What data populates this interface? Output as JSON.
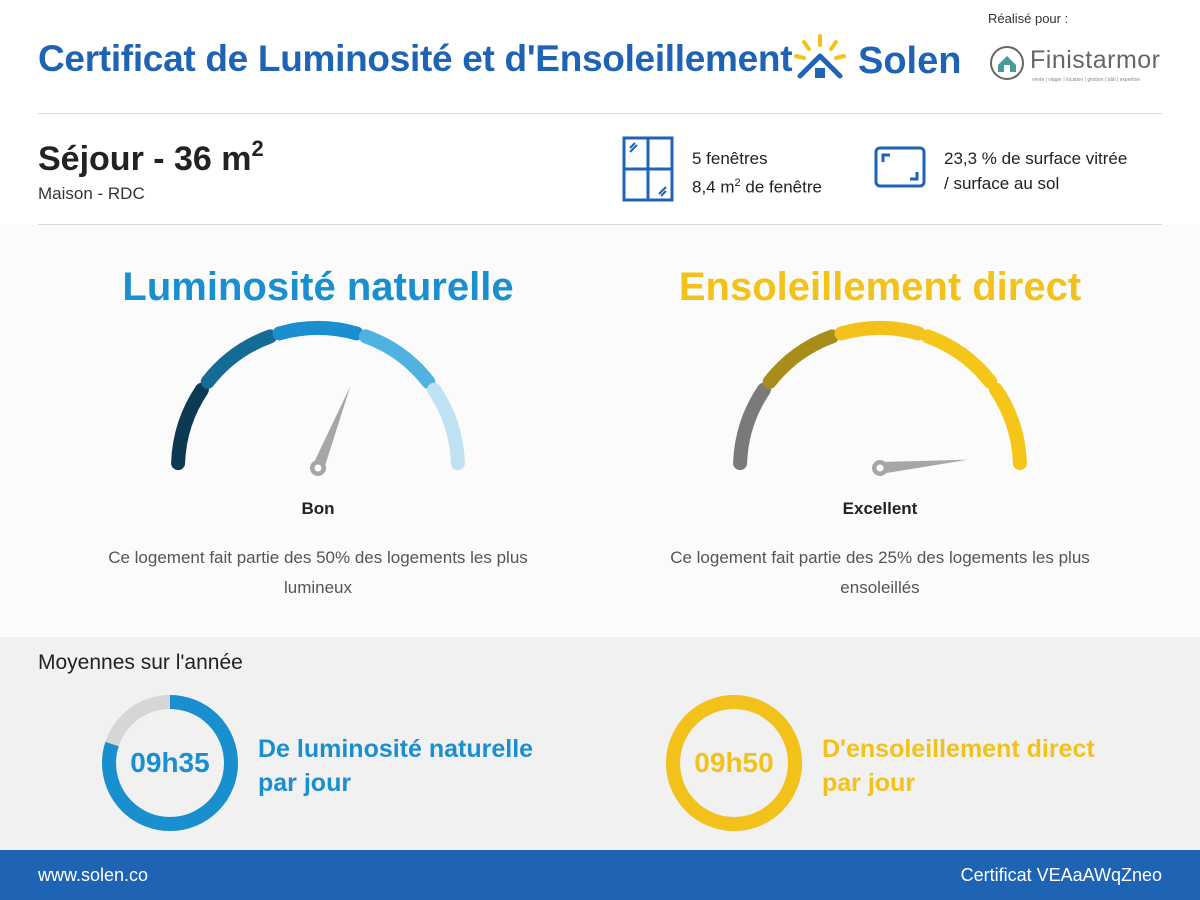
{
  "header": {
    "title": "Certificat de Luminosité et d'Ensoleillement",
    "brand": "Solen",
    "made_for_label": "Réalisé pour :",
    "partner_name": "Finistarmor",
    "partner_tagline": "vente | viager | location | gestion | bâti | expertise"
  },
  "room": {
    "title": "Séjour - 36 m",
    "title_exponent": "2",
    "subtitle": "Maison - RDC",
    "windows_count": "5 fenêtres",
    "window_area_prefix": "8,4 m",
    "window_area_exponent": "2",
    "window_area_suffix": " de fenêtre",
    "glazed_ratio_line1": "23,3 % de surface vitrée",
    "glazed_ratio_line2": "/ surface au sol"
  },
  "gauges": {
    "luminosity": {
      "title": "Luminosité naturelle",
      "rating": "Bon",
      "description": "Ce logement fait partie des 50% des logements les plus lumineux",
      "color": "#1a8fcf",
      "level": 0.62
    },
    "sunshine": {
      "title": "Ensoleillement direct",
      "rating": "Excellent",
      "description": "Ce logement fait partie des 25% des logements les plus ensoleillés",
      "color": "#f2c21b",
      "level": 0.97
    }
  },
  "averages": {
    "title": "Moyennes sur l'année",
    "luminosity": {
      "value": "09h35",
      "label_line1": "De luminosité naturelle",
      "label_line2": "par jour",
      "color": "#1a8fcf",
      "fraction": 0.8
    },
    "sunshine": {
      "value": "09h50",
      "label_line1": "D'ensoleillement direct",
      "label_line2": "par jour",
      "color": "#f2c21b",
      "fraction": 1.0
    }
  },
  "footer": {
    "website": "www.solen.co",
    "certificate": "Certificat VEAaAWqZneo"
  }
}
